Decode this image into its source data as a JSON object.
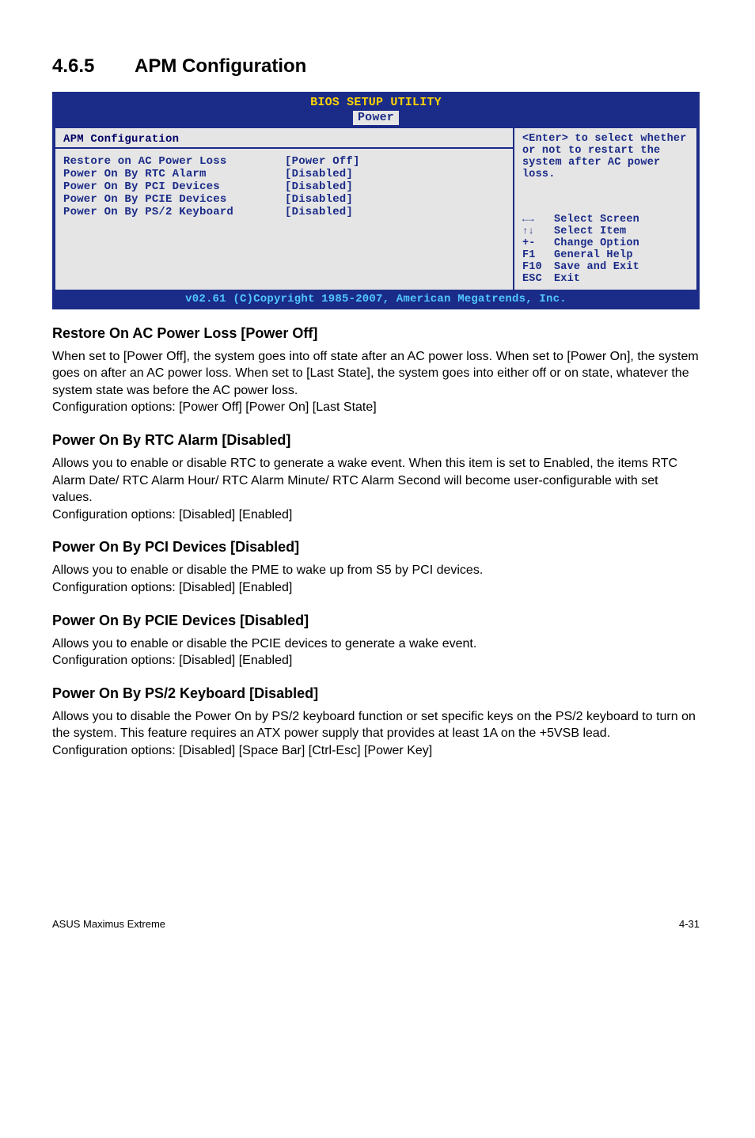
{
  "heading": {
    "number": "4.6.5",
    "title": "APM Configuration"
  },
  "bios": {
    "title": "BIOS SETUP UTILITY",
    "tab": "Power",
    "section_title": "APM Configuration",
    "rows": [
      {
        "name": "Restore on AC Power Loss",
        "value": "[Power Off]"
      },
      {
        "name": "Power On By RTC Alarm",
        "value": "[Disabled]"
      },
      {
        "name": "Power On By PCI Devices",
        "value": "[Disabled]"
      },
      {
        "name": "Power On By PCIE Devices",
        "value": "[Disabled]"
      },
      {
        "name": "Power On By PS/2 Keyboard",
        "value": "[Disabled]"
      }
    ],
    "help_text": "<Enter> to select whether or not to restart the system after AC power loss.",
    "nav": [
      {
        "key": "←→",
        "label": "Select Screen"
      },
      {
        "key": "↑↓",
        "label": "Select Item"
      },
      {
        "key": "+-",
        "label": "Change Option"
      },
      {
        "key": "F1",
        "label": "General Help"
      },
      {
        "key": "F10",
        "label": "Save and Exit"
      },
      {
        "key": "ESC",
        "label": "Exit"
      }
    ],
    "footer": "v02.61 (C)Copyright 1985-2007, American Megatrends, Inc."
  },
  "sections": [
    {
      "title": "Restore On AC Power Loss [Power Off]",
      "body": "When set to [Power Off], the system goes into off state after an AC power loss. When set to [Power On], the system goes on after an AC power loss. When set to [Last State], the system goes into either off or on state, whatever the system state was before the AC power loss.\nConfiguration options: [Power Off] [Power On] [Last State]"
    },
    {
      "title": "Power On By RTC Alarm [Disabled]",
      "body": "Allows you to enable or disable RTC to generate a wake event. When this item is set to Enabled, the items RTC Alarm Date/ RTC Alarm Hour/ RTC Alarm Minute/ RTC Alarm Second will become user-configurable with set values.\nConfiguration options: [Disabled] [Enabled]"
    },
    {
      "title": "Power On By PCI Devices [Disabled]",
      "body": "Allows you to enable or disable the PME to wake up from S5 by PCI devices.\nConfiguration options: [Disabled] [Enabled]"
    },
    {
      "title": "Power On By PCIE Devices [Disabled]",
      "body": "Allows you to enable or disable the PCIE devices to generate a wake event.\nConfiguration options: [Disabled] [Enabled]"
    },
    {
      "title": "Power On By PS/2 Keyboard [Disabled]",
      "body": "Allows you to disable the Power On by PS/2 keyboard function or set specific keys on the PS/2 keyboard to turn on the system. This feature requires an ATX power supply that provides at least 1A on the +5VSB lead.\nConfiguration options: [Disabled] [Space Bar] [Ctrl-Esc] [Power Key]"
    }
  ],
  "page_footer": {
    "left": "ASUS Maximus Extreme",
    "right": "4-31"
  }
}
